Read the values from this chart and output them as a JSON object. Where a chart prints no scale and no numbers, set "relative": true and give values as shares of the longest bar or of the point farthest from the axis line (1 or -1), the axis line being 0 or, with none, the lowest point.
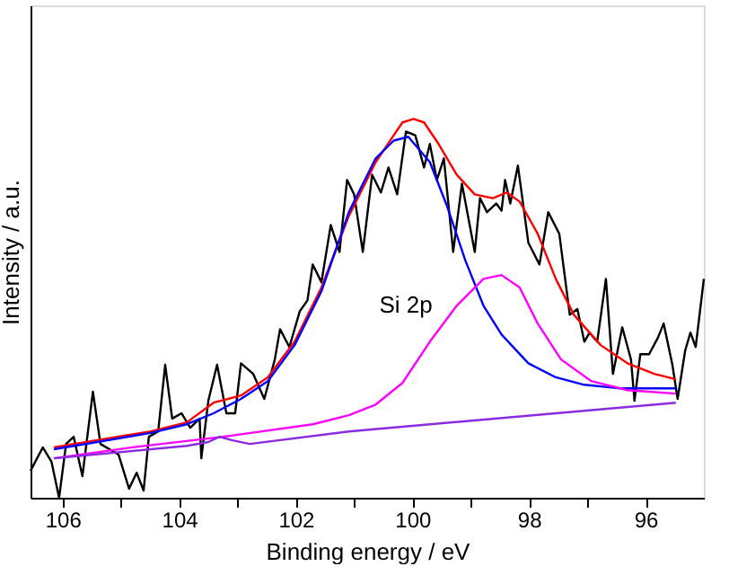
{
  "chart_data": {
    "type": "line",
    "relative": true,
    "xlabel": "Binding energy / eV",
    "ylabel": "Intensity / a.u.",
    "annotations": [
      "Si 2p"
    ],
    "xlim": [
      106.55,
      95.0
    ],
    "xticks": [
      106,
      {
        "value": 105,
        "label": null
      },
      104,
      {
        "value": 103,
        "label": null
      },
      102,
      {
        "value": 101,
        "label": null
      },
      100,
      {
        "value": 99,
        "label": null
      },
      98,
      {
        "value": 97,
        "label": null
      },
      96
    ],
    "tick_labels": "x",
    "grid": false,
    "marker": "none",
    "line_style": "solid",
    "series": [
      {
        "color": "#000000",
        "x": [
          106.55,
          106.34,
          106.19,
          106.06,
          105.94,
          105.81,
          105.66,
          105.48,
          105.35,
          105.04,
          104.86,
          104.73,
          104.61,
          104.52,
          104.36,
          104.24,
          104.12,
          103.96,
          103.81,
          103.65,
          103.62,
          103.5,
          103.35,
          103.19,
          103.04,
          102.94,
          102.73,
          102.54,
          102.36,
          102.27,
          102.11,
          101.93,
          101.8,
          101.71,
          101.56,
          101.4,
          101.25,
          101.12,
          101.0,
          100.85,
          100.69,
          100.54,
          100.41,
          100.26,
          100.11,
          99.95,
          99.8,
          99.7,
          99.58,
          99.46,
          99.3,
          99.15,
          98.93,
          98.84,
          98.72,
          98.56,
          98.47,
          98.41,
          98.32,
          98.19,
          98.01,
          97.82,
          97.67,
          97.48,
          97.3,
          97.17,
          97.05,
          96.96,
          96.83,
          96.68,
          96.56,
          96.4,
          96.25,
          96.19,
          96.09,
          95.94,
          95.79,
          95.69,
          95.54,
          95.45,
          95.32,
          95.23,
          95.14,
          95.0
        ],
        "values": [
          0.071,
          0.133,
          0.095,
          0,
          0.142,
          0.161,
          0.057,
          0.28,
          0.142,
          0.114,
          0.024,
          0.066,
          0.019,
          0.161,
          0.175,
          0.351,
          0.209,
          0.223,
          0.185,
          0.209,
          0.104,
          0.256,
          0.351,
          0.223,
          0.223,
          0.355,
          0.327,
          0.261,
          0.365,
          0.445,
          0.398,
          0.493,
          0.521,
          0.616,
          0.569,
          0.72,
          0.649,
          0.839,
          0.801,
          0.649,
          0.853,
          0.806,
          0.872,
          0.801,
          0.967,
          0.957,
          0.872,
          0.934,
          0.839,
          0.896,
          0.649,
          0.829,
          0.649,
          0.791,
          0.754,
          0.777,
          0.758,
          0.839,
          0.777,
          0.877,
          0.673,
          0.616,
          0.754,
          0.697,
          0.483,
          0.498,
          0.412,
          0.436,
          0.412,
          0.578,
          0.327,
          0.45,
          0.365,
          0.256,
          0.379,
          0.379,
          0.422,
          0.46,
          0.351,
          0.261,
          0.389,
          0.436,
          0.398,
          0.578
        ]
      },
      {
        "color": "#ff0000",
        "x": [
          106.15,
          105.41,
          104.49,
          103.87,
          103.41,
          102.94,
          102.48,
          102.02,
          101.56,
          101.09,
          100.63,
          100.32,
          100.17,
          99.98,
          99.8,
          99.55,
          99.24,
          98.93,
          98.62,
          98.38,
          98.16,
          97.85,
          97.54,
          97.23,
          96.77,
          96.31,
          95.85,
          95.48
        ],
        "values": [
          0.133,
          0.152,
          0.175,
          0.199,
          0.251,
          0.27,
          0.318,
          0.412,
          0.555,
          0.744,
          0.886,
          0.957,
          0.991,
          1.0,
          0.991,
          0.934,
          0.853,
          0.801,
          0.791,
          0.806,
          0.782,
          0.697,
          0.578,
          0.483,
          0.403,
          0.355,
          0.327,
          0.313
        ]
      },
      {
        "color": "#0000ff",
        "x": [
          106.15,
          105.41,
          104.49,
          103.87,
          103.41,
          102.94,
          102.48,
          102.02,
          101.56,
          101.09,
          100.63,
          100.32,
          100.07,
          99.7,
          99.4,
          99.09,
          98.78,
          98.47,
          98.01,
          97.54,
          97.08,
          96.46,
          95.48
        ],
        "values": [
          0.128,
          0.147,
          0.171,
          0.194,
          0.223,
          0.261,
          0.308,
          0.403,
          0.545,
          0.754,
          0.896,
          0.943,
          0.953,
          0.886,
          0.768,
          0.626,
          0.507,
          0.431,
          0.355,
          0.318,
          0.299,
          0.289,
          0.289
        ]
      },
      {
        "color": "#ff00ff",
        "x": [
          106.15,
          104.8,
          103.25,
          101.71,
          101.09,
          100.63,
          100.17,
          99.7,
          99.24,
          98.78,
          98.47,
          98.16,
          97.85,
          97.45,
          96.93,
          96.31,
          95.48
        ],
        "values": [
          0.104,
          0.133,
          0.161,
          0.194,
          0.218,
          0.246,
          0.303,
          0.412,
          0.507,
          0.578,
          0.588,
          0.555,
          0.46,
          0.365,
          0.308,
          0.284,
          0.275
        ]
      },
      {
        "color": "#8a2be2",
        "x": [
          106.15,
          103.87,
          103.5,
          103.31,
          103.1,
          102.79,
          101.09,
          95.48
        ],
        "values": [
          0.104,
          0.137,
          0.147,
          0.161,
          0.152,
          0.142,
          0.175,
          0.251
        ]
      }
    ]
  }
}
